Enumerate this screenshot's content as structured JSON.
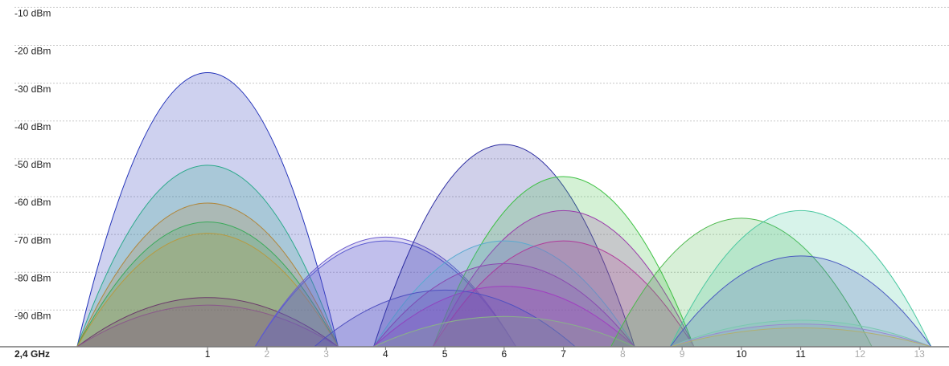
{
  "chart_data": {
    "type": "channel",
    "x_label": "2,4 GHz",
    "xlim": [
      -2.5,
      13.5
    ],
    "xticks": [
      1,
      2,
      3,
      4,
      5,
      6,
      7,
      8,
      9,
      10,
      11,
      12,
      13
    ],
    "ylim": [
      -98,
      -8
    ],
    "yticks": [
      {
        "value": -10,
        "label": "-10 dBm"
      },
      {
        "value": -20,
        "label": "-20 dBm"
      },
      {
        "value": -30,
        "label": "-30 dBm"
      },
      {
        "value": -40,
        "label": "-40 dBm"
      },
      {
        "value": -50,
        "label": "-50 dBm"
      },
      {
        "value": -60,
        "label": "-60 dBm"
      },
      {
        "value": -70,
        "label": "-70 dBm"
      },
      {
        "value": -80,
        "label": "-80 dBm"
      },
      {
        "value": -90,
        "label": "-90 dBm"
      }
    ],
    "grid": true,
    "channel_width": 4.4,
    "series": [
      {
        "channel": 1,
        "value": -25.5,
        "color": "#1f2fb8"
      },
      {
        "channel": 1,
        "value": -50,
        "color": "#2aa98a"
      },
      {
        "channel": 1,
        "value": -60,
        "color": "#b0863a"
      },
      {
        "channel": 1,
        "value": -65,
        "color": "#3aaa5a"
      },
      {
        "channel": 1,
        "value": -68,
        "color": "#b89a40"
      },
      {
        "channel": 1,
        "value": -85,
        "color": "#6a3a6a"
      },
      {
        "channel": 1,
        "value": -87,
        "color": "#8a5a8a"
      },
      {
        "channel": 4,
        "value": -69,
        "color": "#6a5acd"
      },
      {
        "channel": 4,
        "value": -70,
        "color": "#5a5ad0"
      },
      {
        "channel": 6,
        "value": -44.5,
        "color": "#2a2aa0"
      },
      {
        "channel": 7,
        "value": -53,
        "color": "#3ac040"
      },
      {
        "channel": 7,
        "value": -62,
        "color": "#9a3aaa"
      },
      {
        "channel": 6,
        "value": -70,
        "color": "#5aaad0"
      },
      {
        "channel": 7,
        "value": -70,
        "color": "#b03a9a"
      },
      {
        "channel": 6,
        "value": -76,
        "color": "#8a4ab0"
      },
      {
        "channel": 6,
        "value": -82,
        "color": "#a040c0"
      },
      {
        "channel": 5,
        "value": -83,
        "color": "#5050c0"
      },
      {
        "channel": 6,
        "value": -90,
        "color": "#8ab08a"
      },
      {
        "channel": 10,
        "value": -64,
        "color": "#4ab84a"
      },
      {
        "channel": 11,
        "value": -62,
        "color": "#4ac8a0"
      },
      {
        "channel": 11,
        "value": -74,
        "color": "#4a5ac0"
      },
      {
        "channel": 11,
        "value": -91,
        "color": "#7ac8b0"
      },
      {
        "channel": 11,
        "value": -92,
        "color": "#9a8ad0"
      },
      {
        "channel": 11,
        "value": -93,
        "color": "#b0b070"
      }
    ]
  }
}
